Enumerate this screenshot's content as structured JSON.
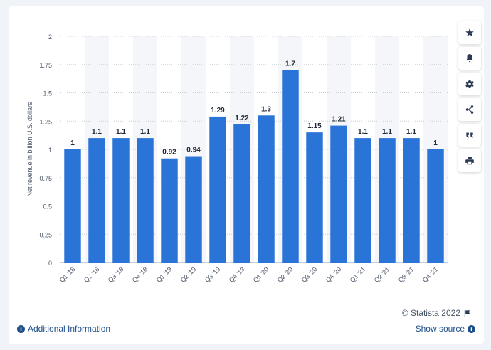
{
  "chart_data": {
    "type": "bar",
    "title": "",
    "xlabel": "",
    "ylabel": "Net revenue in billion U.S. dollars",
    "ylim": [
      0,
      2
    ],
    "yticks": [
      "0",
      "0.25",
      "0.5",
      "0.75",
      "1",
      "1.25",
      "1.5",
      "1.75",
      "2"
    ],
    "categories": [
      "Q1 '18",
      "Q2 '18",
      "Q3 '18",
      "Q4 '18",
      "Q1 '19",
      "Q2 '19",
      "Q3 '19",
      "Q4 '19",
      "Q1 '20",
      "Q2 '20",
      "Q3 '20",
      "Q4 '20",
      "Q1 '21",
      "Q2 '21",
      "Q3 '21",
      "Q4 '21"
    ],
    "values": [
      1,
      1.1,
      1.1,
      1.1,
      0.92,
      0.94,
      1.29,
      1.22,
      1.3,
      1.7,
      1.15,
      1.21,
      1.1,
      1.1,
      1.1,
      1
    ],
    "value_labels": [
      "1",
      "1.1",
      "1.1",
      "1.1",
      "0.92",
      "0.94",
      "1.29",
      "1.22",
      "1.3",
      "1.7",
      "1.15",
      "1.21",
      "1.1",
      "1.1",
      "1.1",
      "1"
    ],
    "grid": true,
    "bar_color": "#2a74d8"
  },
  "toolbar": {
    "buttons": [
      {
        "name": "star-icon"
      },
      {
        "name": "bell-icon"
      },
      {
        "name": "gear-icon"
      },
      {
        "name": "share-icon"
      },
      {
        "name": "quote-icon"
      },
      {
        "name": "print-icon"
      }
    ]
  },
  "footer": {
    "copyright": "© Statista 2022",
    "additional_info": "Additional Information",
    "show_source": "Show source"
  }
}
